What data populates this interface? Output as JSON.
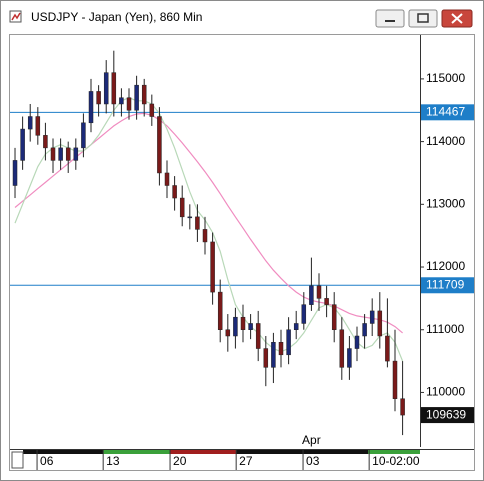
{
  "chart_data": {
    "type": "candlestick",
    "title": "USDJPY - Japan (Yen), 860 Min",
    "open": [
      113300,
      113700,
      114200,
      114400,
      114100,
      113900,
      113700,
      113900,
      113700,
      113900,
      114300,
      114800,
      114600,
      115100,
      114600,
      114700,
      114500,
      114900,
      114600,
      114400,
      113500,
      113300,
      113100,
      112800,
      112800,
      112600,
      112400,
      111600,
      111000,
      110900,
      111200,
      111000,
      111100,
      110700,
      110400,
      110800,
      110600,
      111000,
      111100,
      111400,
      111700,
      111500,
      111400,
      111000,
      110400,
      110700,
      110900,
      111100,
      111300,
      110900,
      110500,
      109900
    ],
    "high": [
      113900,
      114400,
      114600,
      114550,
      114300,
      114050,
      114050,
      114000,
      114050,
      114450,
      115000,
      114900,
      115300,
      115450,
      114850,
      114850,
      115050,
      115000,
      114750,
      114550,
      113700,
      113450,
      113300,
      113000,
      113000,
      112800,
      112550,
      111800,
      111250,
      111350,
      111400,
      111250,
      111300,
      110900,
      110950,
      111000,
      111200,
      111300,
      111600,
      112150,
      111900,
      111700,
      111600,
      111200,
      110900,
      111050,
      111250,
      111500,
      111600,
      111500,
      111000,
      110500
    ],
    "low": [
      113100,
      113550,
      114000,
      113950,
      113700,
      113500,
      113550,
      113500,
      113550,
      113750,
      114150,
      114400,
      114450,
      114400,
      114400,
      114350,
      114350,
      114400,
      114250,
      113300,
      113100,
      112900,
      112650,
      112600,
      112400,
      112200,
      111400,
      110800,
      110650,
      110700,
      110800,
      110850,
      110500,
      110100,
      110150,
      110400,
      110450,
      110850,
      111000,
      111300,
      111300,
      111200,
      110800,
      110200,
      110200,
      110500,
      110700,
      110900,
      110700,
      110400,
      109700,
      109320
    ],
    "close": [
      113700,
      114200,
      114400,
      114100,
      113900,
      113700,
      113900,
      113700,
      113900,
      114300,
      114800,
      114600,
      115100,
      114600,
      114700,
      114500,
      114900,
      114600,
      114400,
      113500,
      113300,
      113100,
      112800,
      112800,
      112600,
      112400,
      111600,
      111000,
      110900,
      111200,
      111000,
      111100,
      110700,
      110400,
      110800,
      110600,
      111000,
      111100,
      111400,
      111700,
      111500,
      111400,
      111000,
      110400,
      110700,
      110900,
      111100,
      111300,
      110900,
      110500,
      109900,
      109639
    ],
    "up_color": "#1c2a78",
    "down_color": "#7a1a1a",
    "lines": [
      {
        "color": "#f08cc0",
        "values": [
          112950,
          113050,
          113150,
          113250,
          113350,
          113450,
          113550,
          113650,
          113750,
          113850,
          113950,
          114050,
          114150,
          114250,
          114330,
          114400,
          114440,
          114450,
          114420,
          114350,
          114250,
          114120,
          113980,
          113830,
          113680,
          113520,
          113350,
          113170,
          112980,
          112800,
          112620,
          112440,
          112270,
          112100,
          111950,
          111820,
          111700,
          111600,
          111520,
          111470,
          111440,
          111420,
          111380,
          111320,
          111260,
          111220,
          111200,
          111180,
          111160,
          111120,
          111050,
          110950
        ]
      },
      {
        "color": "#b8d8b8",
        "values": [
          112700,
          113000,
          113300,
          113600,
          113800,
          113900,
          113950,
          113900,
          113850,
          113850,
          113950,
          114100,
          114300,
          114500,
          114650,
          114700,
          114650,
          114650,
          114600,
          114450,
          114200,
          113900,
          113550,
          113200,
          112900,
          112750,
          112550,
          112250,
          111800,
          111400,
          111200,
          111050,
          110950,
          110800,
          110700,
          110650,
          110700,
          110800,
          110950,
          111150,
          111350,
          111400,
          111350,
          111200,
          111000,
          110800,
          110700,
          110750,
          110900,
          110950,
          110800,
          110500
        ]
      }
    ],
    "hlines": [
      {
        "value": 114467,
        "color": "#1e7ec8"
      },
      {
        "value": 111709,
        "color": "#1e7ec8"
      }
    ],
    "last_price": {
      "value": 109639,
      "color": "#111111"
    },
    "ylim": [
      109130,
      115700
    ],
    "yticks": [
      110000,
      111000,
      112000,
      113000,
      114000,
      115000
    ],
    "xlim": [
      -0.66,
      53.29
    ],
    "xticks": [
      {
        "value": 2.9,
        "label": "06"
      },
      {
        "value": 11.6,
        "label": "13"
      },
      {
        "value": 20.4,
        "label": "20"
      },
      {
        "value": 29.1,
        "label": "27"
      },
      {
        "value": 37.9,
        "label": "03"
      },
      {
        "value": 46.6,
        "label": "10-02:00"
      }
    ],
    "annotations": [
      {
        "text": "Apr"
      }
    ]
  }
}
